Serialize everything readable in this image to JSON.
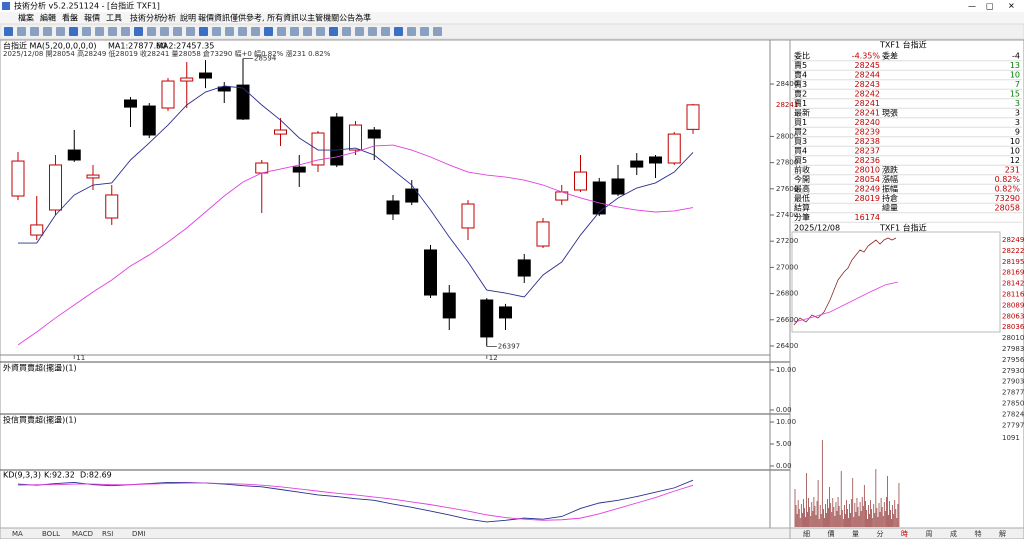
{
  "window": {
    "title": "技術分析 v5.2.251124 - [台指近 TXF1]",
    "menu": [
      "檔案",
      "編輯",
      "看盤",
      "報價",
      "工具",
      "技術分析",
      "分析",
      "說明",
      "報價資訊僅供參考, 所有資訊以主管機關公告為準"
    ]
  },
  "chart_data": {
    "type": "candlestick",
    "header": "台指近 MA(5,20,0,0,0,0)",
    "ma_labels": [
      "MA1:27877.60",
      "MA2:27457.35"
    ],
    "info": "2025/12/08 開28054 高28249 低28019 收28241 量28058 倉73290 幅+0 幅0.82% 漲231 0.82%",
    "ylim": [
      26331,
      28721
    ],
    "yticks": [
      26400,
      26600,
      26800,
      27000,
      27200,
      27400,
      27600,
      27800,
      28000,
      28400
    ],
    "last_price": 28241,
    "high_mark": {
      "index": 12,
      "value": 28594
    },
    "low_mark": {
      "index": 25,
      "value": 26397
    },
    "x_labels": [
      {
        "index": 3,
        "label": "11"
      },
      {
        "index": 25,
        "label": "12"
      }
    ],
    "up_color": "#c00000",
    "down_color": "#000000",
    "open": [
      27545,
      27247,
      27438,
      27896,
      27683,
      27377,
      28278,
      28232,
      28217,
      28423,
      28484,
      28377,
      28392,
      27721,
      28018,
      27766,
      27782,
      28148,
      27896,
      28049,
      27507,
      27598,
      27133,
      26804,
      27301,
      26751,
      26698,
      27057,
      27163,
      27514,
      27591,
      27652,
      27675,
      27812,
      27843,
      27797,
      28054
    ],
    "high": [
      27881,
      27545,
      27858,
      28049,
      27782,
      27629,
      28301,
      28255,
      28446,
      28568,
      28583,
      28415,
      28594,
      27820,
      28140,
      27858,
      28041,
      28179,
      28118,
      28072,
      27553,
      27667,
      27171,
      26866,
      27514,
      26766,
      26721,
      27102,
      27377,
      27629,
      27858,
      27683,
      27782,
      27873,
      27858,
      28033,
      28249
    ],
    "low": [
      27514,
      27209,
      27400,
      27805,
      27591,
      27324,
      28072,
      27988,
      28194,
      28217,
      28369,
      28255,
      28125,
      27415,
      27927,
      27614,
      27728,
      27766,
      27858,
      27820,
      27362,
      27476,
      26766,
      26522,
      27209,
      26397,
      26522,
      26881,
      27148,
      27476,
      27576,
      27392,
      27545,
      27705,
      27683,
      27782,
      28019
    ],
    "close": [
      27812,
      27324,
      27782,
      27820,
      27705,
      27553,
      28224,
      28011,
      28423,
      28446,
      28446,
      28347,
      28133,
      27797,
      28049,
      27728,
      28026,
      27782,
      28087,
      27988,
      27408,
      27499,
      26789,
      26614,
      27484,
      26469,
      26614,
      26934,
      27347,
      27576,
      27728,
      27408,
      27560,
      27766,
      27797,
      28018,
      28241
    ],
    "series": [
      {
        "name": "MA1",
        "color": "#2a2f8f",
        "values": [
          27186,
          27186,
          27400,
          27553,
          27629,
          27645,
          27820,
          27950,
          28087,
          28240,
          28339,
          28385,
          28369,
          28240,
          28125,
          27988,
          27896,
          27896,
          27911,
          27858,
          27743,
          27629,
          27438,
          27232,
          27041,
          26827,
          26804,
          26774,
          26942,
          27041,
          27247,
          27423,
          27530,
          27606,
          27645,
          27728,
          27878
        ]
      },
      {
        "name": "MA2",
        "color": "#e040e0",
        "values": [
          26408,
          26507,
          26614,
          26713,
          26812,
          26904,
          27011,
          27095,
          27194,
          27301,
          27423,
          27545,
          27652,
          27721,
          27751,
          27782,
          27820,
          27843,
          27881,
          27927,
          27934,
          27896,
          27843,
          27782,
          27728,
          27705,
          27690,
          27667,
          27629,
          27576,
          27530,
          27492,
          27461,
          27438,
          27423,
          27431,
          27457
        ]
      }
    ]
  },
  "indicators": [
    {
      "title": "外資買賣超(擺盪)(1)",
      "yticks": [
        {
          "value": 10,
          "label": "10.00"
        },
        {
          "value": 0,
          "label": "0.00"
        }
      ]
    },
    {
      "title": "投信買賣超(擺盪)(1)",
      "yticks": [
        {
          "value": 10,
          "label": "10.00"
        },
        {
          "value": 5,
          "label": "5.00"
        },
        {
          "value": 0,
          "label": "0.00"
        }
      ]
    }
  ],
  "kd": {
    "title": "KD(9,3,3)",
    "k_label": "K:92.32",
    "d_label": "D:82.69",
    "ylim": [
      0,
      100
    ],
    "k": [
      85,
      83,
      86,
      88,
      84,
      82,
      84,
      86,
      88,
      88,
      87,
      85,
      82,
      80,
      75,
      70,
      65,
      62,
      58,
      55,
      48,
      42,
      35,
      28,
      20,
      15,
      18,
      22,
      20,
      25,
      40,
      50,
      55,
      62,
      70,
      78,
      92.32
    ],
    "d": [
      83,
      84,
      84,
      85,
      85,
      84,
      84,
      85,
      86,
      87,
      87,
      86,
      85,
      83,
      80,
      76,
      72,
      68,
      65,
      61,
      57,
      52,
      47,
      41,
      35,
      28,
      23,
      20,
      18,
      19,
      22,
      30,
      40,
      50,
      60,
      72,
      82.69
    ]
  },
  "tabs": [
    "MA",
    "BOLL",
    "MACD",
    "RSI",
    "DMI"
  ],
  "quote": {
    "title": "TXF1 台指近",
    "rows": [
      [
        "委比",
        "-4.35%",
        "委差",
        "-4"
      ],
      [
        "賣5",
        "28245",
        "",
        "13"
      ],
      [
        "賣4",
        "28244",
        "",
        "10"
      ],
      [
        "賣3",
        "28243",
        "",
        "7"
      ],
      [
        "賣2",
        "28242",
        "",
        "15"
      ],
      [
        "賣1",
        "28241",
        "",
        "3"
      ],
      [
        "最新",
        "28241",
        "現張",
        "3"
      ],
      [
        "買1",
        "28240",
        "",
        "3"
      ],
      [
        "買2",
        "28239",
        "",
        "9"
      ],
      [
        "買3",
        "28238",
        "",
        "10"
      ],
      [
        "買4",
        "28237",
        "",
        "10"
      ],
      [
        "買5",
        "28236",
        "",
        "12"
      ],
      [
        "前收",
        "28010",
        "漲跌",
        "231"
      ],
      [
        "今開",
        "28054",
        "漲幅",
        "0.82%"
      ],
      [
        "最高",
        "28249",
        "振幅",
        "0.82%"
      ],
      [
        "最低",
        "28019",
        "持倉",
        "73290"
      ],
      [
        "結算",
        "",
        "總量",
        "28058"
      ],
      [
        "分筆",
        "16174",
        "",
        ""
      ]
    ],
    "date": "2025/12/08",
    "mini_title": "TXF1 台指近",
    "mini_ticks": [
      "28249",
      "28222",
      "28195",
      "28169",
      "28142",
      "28116",
      "28089",
      "28063",
      "28036",
      "28010",
      "27983",
      "27956",
      "27930",
      "27903",
      "27877",
      "27850",
      "27824",
      "27797"
    ],
    "volume_label": "1091",
    "tabs": [
      "細",
      "價",
      "量",
      "分",
      "時",
      "周",
      "成",
      "特",
      "解"
    ]
  }
}
